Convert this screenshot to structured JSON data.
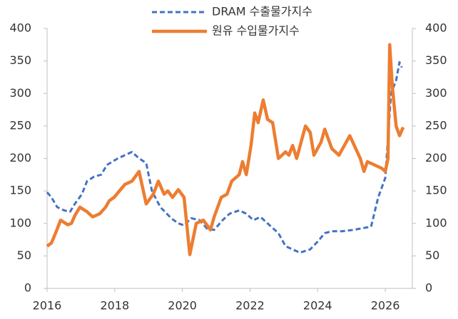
{
  "chart_data": {
    "type": "line",
    "xlim": [
      2016,
      2026.8
    ],
    "xticks": [
      2016,
      2018,
      2020,
      2022,
      2024,
      2026
    ],
    "ylim": [
      0,
      400
    ],
    "yticks": [
      0,
      50,
      100,
      150,
      200,
      250,
      300,
      350,
      400
    ],
    "y2lim": [
      0,
      400
    ],
    "y2ticks": [
      0,
      50,
      100,
      150,
      200,
      250,
      300,
      350,
      400
    ],
    "grid": false,
    "legend": "top",
    "series": [
      {
        "name": "DRAM 수출물가지수",
        "color": "#4472c4",
        "style": "dashed",
        "x": [
          2016.0,
          2016.13,
          2016.3,
          2016.51,
          2016.68,
          2016.82,
          2017.03,
          2017.18,
          2017.39,
          2017.6,
          2017.77,
          2018.09,
          2018.51,
          2018.72,
          2018.93,
          2019.1,
          2019.35,
          2019.67,
          2019.88,
          2020.05,
          2020.26,
          2020.51,
          2020.73,
          2020.94,
          2021.19,
          2021.4,
          2021.68,
          2021.89,
          2022.1,
          2022.31,
          2022.52,
          2022.84,
          2023.05,
          2023.26,
          2023.47,
          2023.78,
          2024.0,
          2024.21,
          2024.42,
          2024.73,
          2025.05,
          2025.58,
          2025.79,
          2026.0,
          2026.17,
          2026.32,
          2026.42,
          2026.49
        ],
        "values": [
          148,
          140,
          125,
          120,
          118,
          130,
          145,
          165,
          172,
          175,
          190,
          200,
          210,
          200,
          193,
          150,
          125,
          108,
          100,
          97,
          108,
          105,
          92,
          90,
          105,
          115,
          120,
          115,
          105,
          110,
          100,
          85,
          65,
          60,
          55,
          60,
          72,
          85,
          88,
          88,
          90,
          95,
          140,
          170,
          300,
          320,
          348,
          340
        ]
      },
      {
        "name": "원유 수입물가지수",
        "color": "#ed7d31",
        "style": "solid",
        "x": [
          2016.0,
          2016.13,
          2016.25,
          2016.4,
          2016.61,
          2016.72,
          2016.82,
          2016.97,
          2017.18,
          2017.35,
          2017.56,
          2017.73,
          2017.84,
          2017.98,
          2018.3,
          2018.51,
          2018.72,
          2018.93,
          2019.14,
          2019.29,
          2019.46,
          2019.57,
          2019.71,
          2019.88,
          2020.05,
          2020.22,
          2020.41,
          2020.62,
          2020.83,
          2020.94,
          2021.15,
          2021.32,
          2021.46,
          2021.68,
          2021.78,
          2021.89,
          2022.03,
          2022.14,
          2022.24,
          2022.39,
          2022.52,
          2022.67,
          2022.84,
          2023.05,
          2023.15,
          2023.26,
          2023.38,
          2023.64,
          2023.78,
          2023.89,
          2024.1,
          2024.21,
          2024.42,
          2024.63,
          2024.95,
          2025.26,
          2025.37,
          2025.47,
          2025.68,
          2025.89,
          2026.0,
          2026.08,
          2026.13,
          2026.21,
          2026.32,
          2026.42,
          2026.53
        ],
        "values": [
          65,
          70,
          85,
          105,
          98,
          100,
          112,
          125,
          118,
          110,
          115,
          125,
          135,
          140,
          160,
          165,
          180,
          130,
          145,
          165,
          145,
          150,
          140,
          152,
          140,
          52,
          100,
          105,
          90,
          110,
          140,
          145,
          165,
          175,
          195,
          175,
          220,
          270,
          255,
          290,
          260,
          255,
          200,
          210,
          205,
          220,
          200,
          250,
          240,
          205,
          225,
          245,
          215,
          205,
          235,
          200,
          180,
          195,
          190,
          185,
          180,
          200,
          375,
          310,
          250,
          235,
          248
        ]
      }
    ]
  }
}
